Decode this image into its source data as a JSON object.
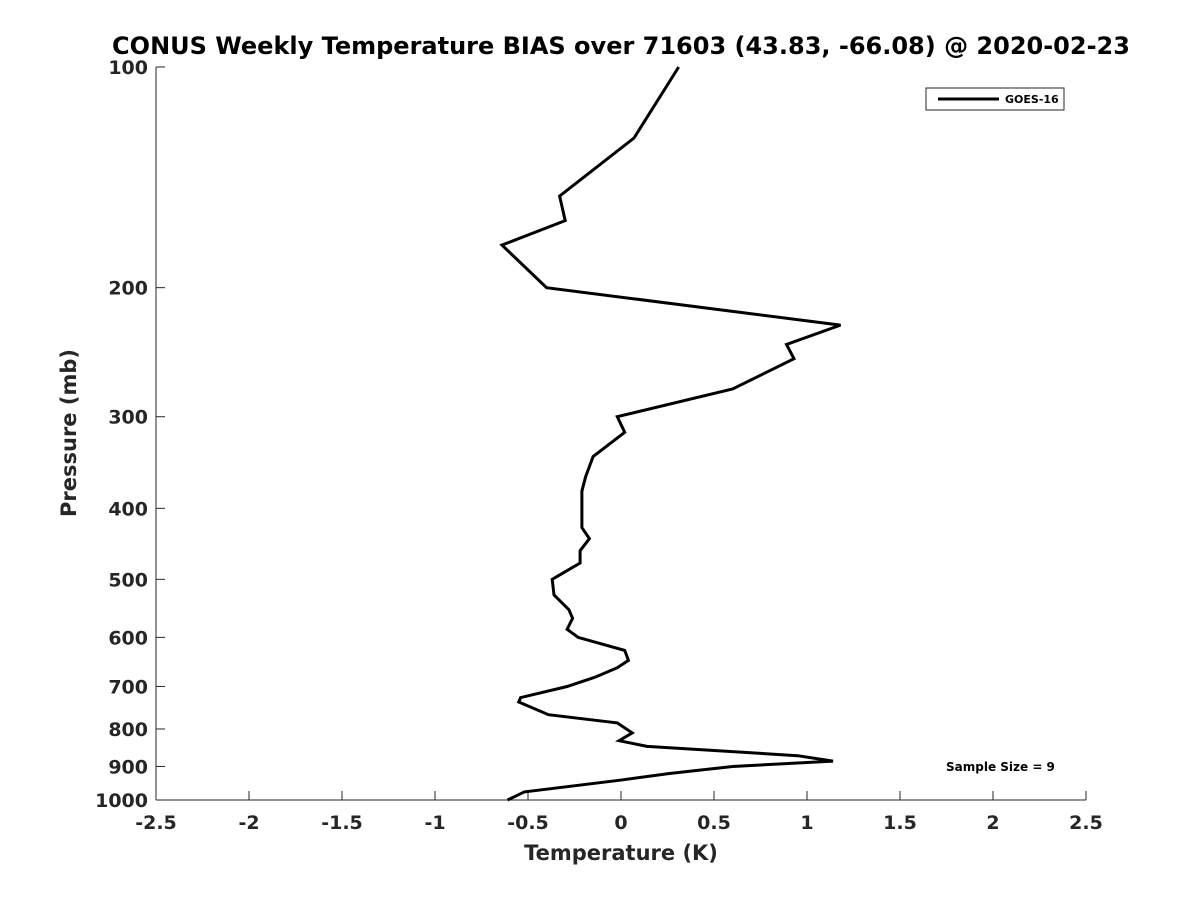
{
  "chart_data": {
    "type": "line",
    "title": "CONUS Weekly Temperature BIAS over 71603 (43.83, -66.08) @ 2020-02-23",
    "xlabel": "Temperature (K)",
    "ylabel": "Pressure (mb)",
    "xlim": [
      -2.5,
      2.5
    ],
    "ylim": [
      100,
      1000
    ],
    "y_scale": "log",
    "y_reversed": true,
    "grid": false,
    "legend_position": "top-right",
    "x_ticks": [
      -2.5,
      -2,
      -1.5,
      -1,
      -0.5,
      0,
      0.5,
      1,
      1.5,
      2,
      2.5
    ],
    "x_tick_labels": [
      "-2.5",
      "-2",
      "-1.5",
      "-1",
      "-0.5",
      "0",
      "0.5",
      "1",
      "1.5",
      "2",
      "2.5"
    ],
    "y_ticks": [
      100,
      200,
      300,
      400,
      500,
      600,
      700,
      800,
      900,
      1000
    ],
    "y_tick_labels": [
      "100",
      "200",
      "300",
      "400",
      "500",
      "600",
      "700",
      "800",
      "900",
      "1000"
    ],
    "series": [
      {
        "name": "GOES-16",
        "color": "#000000",
        "points": [
          {
            "x": 0.31,
            "p": 100
          },
          {
            "x": 0.07,
            "p": 125
          },
          {
            "x": -0.33,
            "p": 150
          },
          {
            "x": -0.3,
            "p": 162
          },
          {
            "x": -0.64,
            "p": 175
          },
          {
            "x": -0.4,
            "p": 200
          },
          {
            "x": 1.18,
            "p": 225
          },
          {
            "x": 0.89,
            "p": 239
          },
          {
            "x": 0.93,
            "p": 250
          },
          {
            "x": 0.6,
            "p": 275
          },
          {
            "x": -0.02,
            "p": 300
          },
          {
            "x": 0.02,
            "p": 315
          },
          {
            "x": -0.15,
            "p": 340
          },
          {
            "x": -0.19,
            "p": 362
          },
          {
            "x": -0.21,
            "p": 379
          },
          {
            "x": -0.21,
            "p": 425
          },
          {
            "x": -0.17,
            "p": 440
          },
          {
            "x": -0.22,
            "p": 457
          },
          {
            "x": -0.22,
            "p": 475
          },
          {
            "x": -0.37,
            "p": 500
          },
          {
            "x": -0.36,
            "p": 525
          },
          {
            "x": -0.28,
            "p": 550
          },
          {
            "x": -0.26,
            "p": 565
          },
          {
            "x": -0.29,
            "p": 585
          },
          {
            "x": -0.23,
            "p": 600
          },
          {
            "x": 0.02,
            "p": 625
          },
          {
            "x": 0.04,
            "p": 645
          },
          {
            "x": -0.02,
            "p": 660
          },
          {
            "x": -0.14,
            "p": 680
          },
          {
            "x": -0.29,
            "p": 700
          },
          {
            "x": -0.54,
            "p": 725
          },
          {
            "x": -0.55,
            "p": 735
          },
          {
            "x": -0.39,
            "p": 765
          },
          {
            "x": -0.02,
            "p": 785
          },
          {
            "x": 0.06,
            "p": 810
          },
          {
            "x": -0.01,
            "p": 830
          },
          {
            "x": 0.14,
            "p": 845
          },
          {
            "x": 0.95,
            "p": 870
          },
          {
            "x": 1.14,
            "p": 885
          },
          {
            "x": 0.6,
            "p": 900
          },
          {
            "x": 0.26,
            "p": 920
          },
          {
            "x": -0.01,
            "p": 940
          },
          {
            "x": -0.52,
            "p": 975
          },
          {
            "x": -0.61,
            "p": 1000
          }
        ]
      }
    ],
    "legend": {
      "entries": [
        "GOES-16"
      ]
    },
    "annotations": [
      {
        "text": "Sample Size = 9",
        "position": "bottom-right"
      }
    ]
  }
}
